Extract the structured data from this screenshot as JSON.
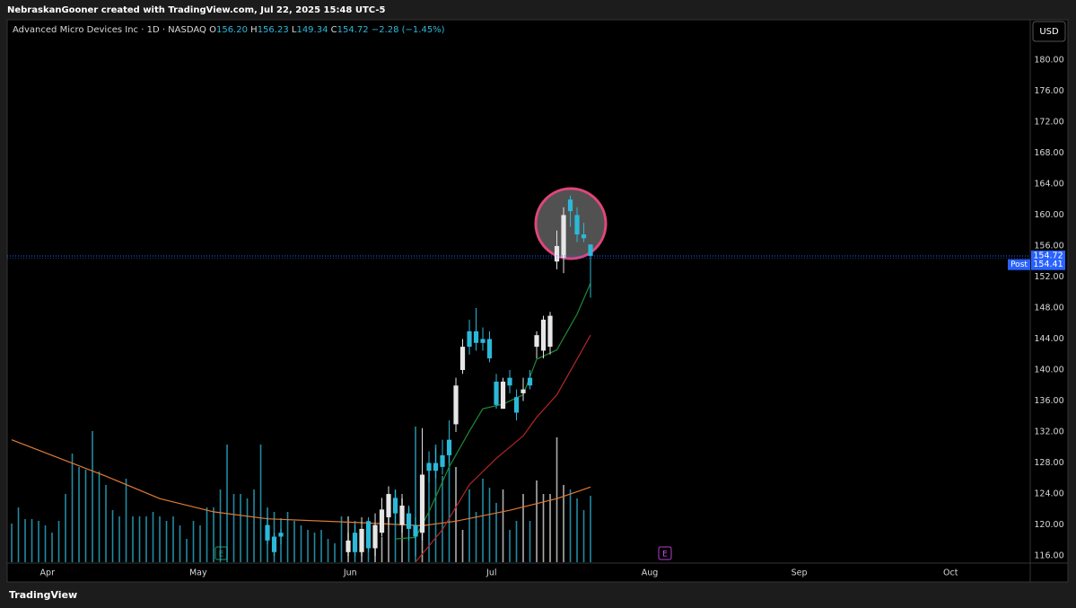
{
  "header": "NebraskanGooner created with TradingView.com, Jul 22, 2025 15:48 UTC-5",
  "brand": "TradingView",
  "currency": "USD",
  "events": [
    "E",
    "E"
  ],
  "chart_data": {
    "type": "candlestick",
    "title": "Advanced Micro Devices Inc · 1D · NASDAQ",
    "ohlc_labels": [
      "O",
      "H",
      "L",
      "C"
    ],
    "ohlc_values": [
      "156.20",
      "156.23",
      "149.34",
      "154.72"
    ],
    "change": "−2.28 (−1.45%)",
    "up_color": "#e6e6e6",
    "down_color": "#2cb8d8",
    "x": [
      38,
      39,
      40,
      50,
      51,
      52,
      53,
      54,
      55,
      56,
      57,
      58,
      59,
      60,
      61,
      62,
      63,
      64,
      65,
      66,
      67,
      68,
      69,
      70,
      71,
      72,
      73,
      74,
      75,
      76,
      77,
      78,
      79,
      80,
      81,
      82,
      83,
      84,
      85,
      86
    ],
    "open": [
      120,
      118.5,
      119,
      116.5,
      119,
      116.5,
      120.5,
      117,
      119,
      121,
      123.5,
      120,
      121.5,
      120,
      119,
      128,
      128,
      129,
      131,
      133,
      140,
      145,
      145,
      144,
      144,
      138.5,
      135,
      139,
      136.5,
      137,
      139,
      143,
      142.5,
      143,
      154,
      154.5,
      162,
      160,
      157.5,
      156.2
    ],
    "high": [
      121,
      119,
      119.5,
      119,
      120,
      121,
      121,
      121.5,
      123.5,
      125,
      124.5,
      124,
      122.5,
      121,
      132.5,
      129.5,
      130,
      131,
      133.5,
      139,
      144,
      146.5,
      148,
      145.5,
      145,
      139.5,
      139,
      140,
      137.5,
      139,
      140,
      145,
      147,
      147.5,
      158,
      161,
      162.5,
      161,
      159,
      156.23
    ],
    "low": [
      117.5,
      116,
      117.5,
      116,
      116,
      116,
      116.5,
      116,
      118.5,
      120,
      120,
      119,
      118,
      116,
      118,
      125.5,
      126,
      126.5,
      128,
      132,
      139.5,
      142,
      142.5,
      142.5,
      141,
      135,
      135,
      137,
      133.5,
      136,
      137.5,
      141.5,
      141.5,
      142,
      153,
      152.5,
      158.5,
      156.5,
      156.5,
      149.34
    ],
    "close": [
      118,
      116.5,
      118.5,
      118,
      116.5,
      119.5,
      117,
      120,
      122,
      124,
      121.5,
      122.5,
      119.5,
      118.5,
      126.5,
      127,
      127,
      127.5,
      129,
      138,
      143,
      143,
      143.5,
      143.5,
      141.5,
      135.5,
      138.5,
      138,
      134.5,
      137.5,
      138,
      144.5,
      146.5,
      147,
      156,
      160,
      160.5,
      157.5,
      157,
      154.72
    ],
    "volume": {
      "ylim": [
        0,
        604
      ],
      "values": [
        43,
        61,
        48,
        48,
        46,
        41,
        33,
        46,
        76,
        121,
        106,
        103,
        146,
        101,
        86,
        58,
        51,
        93,
        51,
        51,
        51,
        56,
        51,
        46,
        51,
        41,
        26,
        46,
        41,
        61,
        61,
        81,
        131,
        76,
        76,
        71,
        81,
        131,
        61,
        56,
        49,
        56,
        46,
        41,
        36,
        33,
        36,
        26,
        21,
        51,
        51,
        46,
        28,
        46,
        36,
        28,
        76,
        81,
        71,
        61,
        151,
        66,
        111,
        131,
        96,
        131,
        106,
        36,
        81,
        56,
        93,
        83,
        66,
        81,
        36,
        46,
        76,
        46,
        91,
        76,
        76,
        139,
        86,
        81,
        71,
        58,
        74
      ]
    },
    "series": [
      {
        "color": "#e07a34",
        "x": [
          0,
          14,
          22,
          30,
          38,
          52,
          61,
          66,
          74,
          81,
          86
        ],
        "values": [
          131,
          126.3,
          123.4,
          121.7,
          120.8,
          120.3,
          119.9,
          120.5,
          121.9,
          123.4,
          124.9
        ]
      },
      {
        "color": "#1e8a34",
        "x": [
          57,
          60,
          62,
          65,
          68,
          70,
          73,
          76,
          78,
          81,
          84,
          86
        ],
        "values": [
          118.2,
          118.4,
          121.7,
          127.5,
          132.1,
          135,
          135.6,
          136.8,
          141.4,
          142.6,
          147.2,
          151.2
        ]
      },
      {
        "color": "#b52626",
        "x": [
          60,
          64,
          68,
          72,
          76,
          78,
          81,
          84,
          86
        ],
        "values": [
          115.2,
          119.4,
          125.2,
          128.6,
          131.5,
          133.9,
          136.8,
          141.4,
          144.5
        ]
      }
    ],
    "last_price": 154.72,
    "post_label": "Post",
    "post_price": 154.41,
    "price_line_color": "#2962ff",
    "xlim": [
      -0.67,
      151.33
    ],
    "xticks": [
      {
        "value": 5.3,
        "label": "Apr"
      },
      {
        "value": 27.7,
        "label": "May"
      },
      {
        "value": 50.3,
        "label": "Jun"
      },
      {
        "value": 71.3,
        "label": "Jul"
      },
      {
        "value": 94.8,
        "label": "Aug"
      },
      {
        "value": 117,
        "label": "Sep"
      },
      {
        "value": 139.5,
        "label": "Oct"
      }
    ],
    "ylim": [
      115.2,
      185.2
    ],
    "yticks": [
      {
        "value": 116,
        "label": "116.00"
      },
      {
        "value": 120,
        "label": "120.00"
      },
      {
        "value": 124,
        "label": "124.00"
      },
      {
        "value": 128,
        "label": "128.00"
      },
      {
        "value": 132,
        "label": "132.00"
      },
      {
        "value": 136,
        "label": "136.00"
      },
      {
        "value": 140,
        "label": "140.00"
      },
      {
        "value": 144,
        "label": "144.00"
      },
      {
        "value": 148,
        "label": "148.00"
      },
      {
        "value": 152,
        "label": "152.00"
      },
      {
        "value": 156,
        "label": "156.00"
      },
      {
        "value": 160,
        "label": "160.00"
      },
      {
        "value": 164,
        "label": "164.00"
      },
      {
        "value": 168,
        "label": "168.00"
      },
      {
        "value": 172,
        "label": "172.00"
      },
      {
        "value": 176,
        "label": "176.00"
      },
      {
        "value": 180,
        "label": "180.00"
      }
    ],
    "grid": false
  }
}
